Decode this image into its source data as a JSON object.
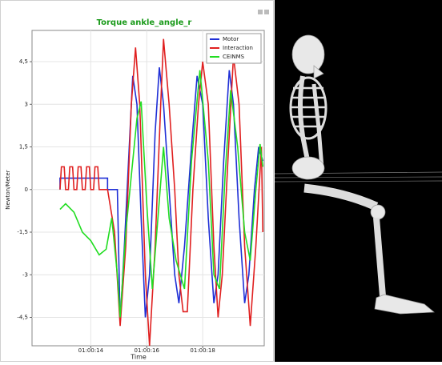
{
  "chart_data": {
    "type": "line",
    "title": "Torque ankle_angle_r",
    "x_label": "Time",
    "y_label": "Newton/Meter",
    "xlim": [
      11.9,
      20.2
    ],
    "ylim": [
      -5.5,
      5.6
    ],
    "xticks": [
      {
        "value": 14,
        "label": "01:00:14"
      },
      {
        "value": 16,
        "label": "01:00:16"
      },
      {
        "value": 18,
        "label": "01:00:18"
      }
    ],
    "yticks": [
      {
        "value": -4.5,
        "label": "-4,5"
      },
      -3,
      {
        "value": -1.5,
        "label": "-1,5"
      },
      0,
      {
        "value": 1.5,
        "label": "1,5"
      },
      3,
      {
        "value": 4.5,
        "label": "4,5"
      }
    ],
    "grid": true,
    "legend": "top-right",
    "series": [
      {
        "name": "Motor",
        "color": "#1f2fd6",
        "x": [
          12.9,
          12.9,
          14.6,
          14.6,
          14.95,
          15.05,
          15.2,
          15.4,
          15.5,
          15.65,
          15.8,
          15.95,
          16.1,
          16.3,
          16.45,
          16.6,
          16.8,
          17.0,
          17.15,
          17.35,
          17.6,
          17.8,
          18.0,
          18.2,
          18.4,
          18.55,
          18.75,
          18.95,
          19.1,
          19.3,
          19.5,
          19.65,
          19.85,
          20.0,
          20.15
        ],
        "values": [
          0,
          0.4,
          0.4,
          0,
          0,
          -4.7,
          -2,
          2,
          4,
          3,
          -1,
          -4.5,
          -3,
          2,
          4.3,
          3,
          0,
          -3,
          -4,
          -2,
          1.5,
          4,
          3,
          -1,
          -4,
          -3,
          1,
          4.2,
          3,
          -1,
          -4,
          -3,
          0,
          1.5,
          1
        ]
      },
      {
        "name": "Interaction",
        "color": "#e02020",
        "x": [
          12.9,
          12.95,
          13.05,
          13.1,
          13.2,
          13.25,
          13.35,
          13.4,
          13.5,
          13.55,
          13.65,
          13.7,
          13.8,
          13.85,
          13.95,
          14.0,
          14.1,
          14.15,
          14.25,
          14.3,
          14.6,
          14.85,
          15.05,
          15.25,
          15.45,
          15.6,
          15.75,
          15.95,
          16.1,
          16.3,
          16.5,
          16.6,
          16.8,
          17.0,
          17.15,
          17.3,
          17.45,
          17.65,
          17.85,
          18.0,
          18.2,
          18.4,
          18.55,
          18.7,
          18.9,
          19.1,
          19.3,
          19.5,
          19.7,
          19.9,
          20.1,
          20.15
        ],
        "values": [
          0,
          0.8,
          0.8,
          0,
          0,
          0.8,
          0.8,
          0,
          0,
          0.8,
          0.8,
          0,
          0,
          0.8,
          0.8,
          0,
          0,
          0.8,
          0.8,
          0,
          0,
          -1.5,
          -4.8,
          -2,
          3,
          5.0,
          3,
          -3,
          -5.5,
          -2,
          3,
          5.3,
          3,
          0,
          -3,
          -4.3,
          -4.3,
          0,
          3,
          4.5,
          3,
          -2,
          -4.5,
          -3,
          1,
          4.7,
          3,
          -2,
          -4.8,
          -2,
          1.5,
          -1.5
        ]
      },
      {
        "name": "CEINMS",
        "color": "#22dd22",
        "x": [
          12.9,
          13.1,
          13.4,
          13.7,
          14.0,
          14.3,
          14.55,
          14.75,
          14.95,
          15.05,
          15.25,
          15.45,
          15.65,
          15.8,
          16.0,
          16.2,
          16.4,
          16.6,
          16.8,
          17.05,
          17.35,
          17.6,
          17.9,
          18.2,
          18.4,
          18.6,
          18.8,
          19.0,
          19.25,
          19.5,
          19.7,
          19.9,
          20.05,
          20.15
        ],
        "values": [
          -0.7,
          -0.5,
          -0.8,
          -1.5,
          -1.8,
          -2.3,
          -2.1,
          -1,
          -3,
          -4.5,
          -1.5,
          0.5,
          2.5,
          3.1,
          -0.5,
          -3.5,
          -1,
          1.5,
          -1,
          -2.5,
          -3.5,
          1,
          4.2,
          1,
          -3,
          -3.5,
          0.5,
          3.5,
          1.5,
          -1.5,
          -2.5,
          0,
          1.6,
          0.8
        ]
      }
    ]
  }
}
